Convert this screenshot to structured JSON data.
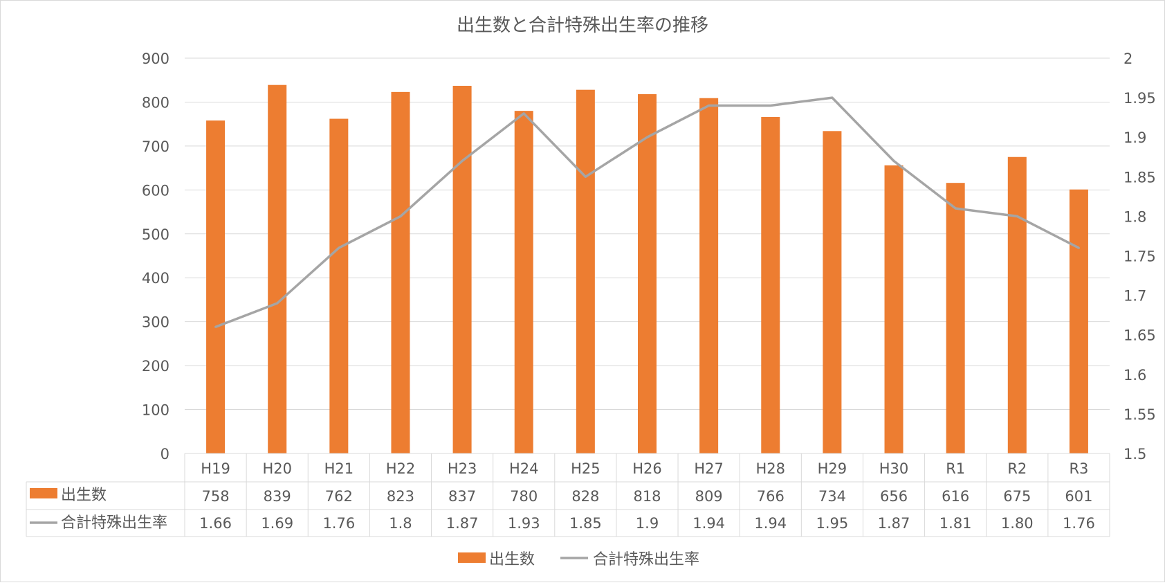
{
  "chart_data": {
    "type": "bar",
    "title": "出生数と合計特殊出生率の推移",
    "categories": [
      "H19",
      "H20",
      "H21",
      "H22",
      "H23",
      "H24",
      "H25",
      "H26",
      "H27",
      "H28",
      "H29",
      "H30",
      "R1",
      "R2",
      "R3"
    ],
    "series": [
      {
        "name": "出生数",
        "type": "bar",
        "axis": "left",
        "color": "#ED7D31",
        "values": [
          758,
          839,
          762,
          823,
          837,
          780,
          828,
          818,
          809,
          766,
          734,
          656,
          616,
          675,
          601
        ],
        "labels": [
          "758",
          "839",
          "762",
          "823",
          "837",
          "780",
          "828",
          "818",
          "809",
          "766",
          "734",
          "656",
          "616",
          "675",
          "601"
        ]
      },
      {
        "name": "合計特殊出生率",
        "type": "line",
        "axis": "right",
        "color": "#A5A5A5",
        "values": [
          1.66,
          1.69,
          1.76,
          1.8,
          1.87,
          1.93,
          1.85,
          1.9,
          1.94,
          1.94,
          1.95,
          1.87,
          1.81,
          1.8,
          1.76
        ],
        "labels": [
          "1.66",
          "1.69",
          "1.76",
          "1.8",
          "1.87",
          "1.93",
          "1.85",
          "1.9",
          "1.94",
          "1.94",
          "1.95",
          "1.87",
          "1.81",
          "1.80",
          "1.76"
        ]
      }
    ],
    "y_left": {
      "min": 0,
      "max": 900,
      "ticks": [
        "0",
        "100",
        "200",
        "300",
        "400",
        "500",
        "600",
        "700",
        "800",
        "900"
      ]
    },
    "y_right": {
      "min": 1.5,
      "max": 2,
      "ticks": [
        "1.5",
        "1.55",
        "1.6",
        "1.65",
        "1.7",
        "1.75",
        "1.8",
        "1.85",
        "1.9",
        "1.95",
        "2"
      ]
    },
    "grid": true,
    "legend_position": "bottom",
    "data_table": true,
    "colors": {
      "gridline": "#D9D9D9",
      "text": "#595959",
      "border": "#D9D9D9"
    }
  }
}
